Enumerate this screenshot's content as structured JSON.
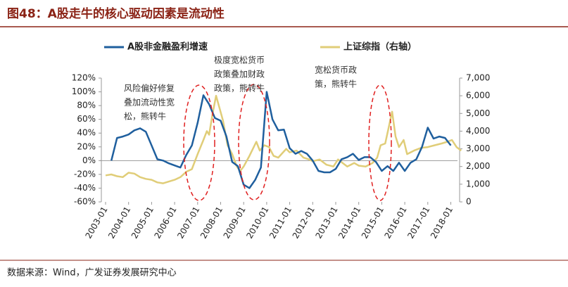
{
  "chart_data": {
    "type": "line",
    "title": "图48：A股走牛的核心驱动因素是流动性",
    "source": "数据来源：Wind，广发证券发展研究中心",
    "annotations": [
      [
        "风险偏好修复",
        "叠加流动性宽",
        "松，熊转牛"
      ],
      [
        "极度宽松货币",
        "政策叠加财政",
        "政策，熊转牛"
      ],
      [
        "宽松货币政",
        "策，熊转牛"
      ]
    ],
    "xlim": [
      2003,
      2018.5
    ],
    "xticks": [
      {
        "value": 2003,
        "label": "2003-01"
      },
      {
        "value": 2004,
        "label": "2004-01"
      },
      {
        "value": 2005,
        "label": "2005-01"
      },
      {
        "value": 2006,
        "label": "2006-01"
      },
      {
        "value": 2007,
        "label": "2007-01"
      },
      {
        "value": 2008,
        "label": "2008-01"
      },
      {
        "value": 2009,
        "label": "2009-01"
      },
      {
        "value": 2010,
        "label": "2010-01"
      },
      {
        "value": 2011,
        "label": "2011-01"
      },
      {
        "value": 2012,
        "label": "2012-01"
      },
      {
        "value": 2013,
        "label": "2013-01"
      },
      {
        "value": 2014,
        "label": "2014-01"
      },
      {
        "value": 2015,
        "label": "2015-01"
      },
      {
        "value": 2016,
        "label": "2016-01"
      },
      {
        "value": 2017,
        "label": "2017-01"
      },
      {
        "value": 2018,
        "label": "2018-01"
      }
    ],
    "ylim": [
      -60,
      120
    ],
    "yticks": [
      {
        "value": -60,
        "label": "-60%"
      },
      {
        "value": -40,
        "label": "-40%"
      },
      {
        "value": -20,
        "label": "-20%"
      },
      {
        "value": 0,
        "label": "0%"
      },
      {
        "value": 20,
        "label": "20%"
      },
      {
        "value": 40,
        "label": "40%"
      },
      {
        "value": 60,
        "label": "60%"
      },
      {
        "value": 80,
        "label": "80%"
      },
      {
        "value": 100,
        "label": "100%"
      },
      {
        "value": 120,
        "label": "120%"
      }
    ],
    "y2lim": [
      0,
      7000
    ],
    "y2ticks": [
      0,
      {
        "value": 1000,
        "label": "1,000"
      },
      {
        "value": 2000,
        "label": "2,000"
      },
      {
        "value": 3000,
        "label": "3,000"
      },
      {
        "value": 4000,
        "label": "4,000"
      },
      {
        "value": 5000,
        "label": "5,000"
      },
      {
        "value": 6000,
        "label": "6,000"
      },
      {
        "value": 7000,
        "label": "7,000"
      }
    ],
    "series": [
      {
        "name": "A股非金融盈利增速",
        "color": "#1f5f9e",
        "x": [
          2003.25,
          2003.5,
          2003.75,
          2004.0,
          2004.25,
          2004.5,
          2004.75,
          2005.0,
          2005.25,
          2005.5,
          2005.75,
          2006.0,
          2006.25,
          2006.5,
          2006.75,
          2007.0,
          2007.25,
          2007.5,
          2007.75,
          2008.0,
          2008.25,
          2008.5,
          2008.75,
          2009.0,
          2009.25,
          2009.5,
          2009.75,
          2010.0,
          2010.25,
          2010.5,
          2010.75,
          2011.0,
          2011.25,
          2011.5,
          2011.75,
          2012.0,
          2012.25,
          2012.5,
          2012.75,
          2013.0,
          2013.25,
          2013.5,
          2013.75,
          2014.0,
          2014.25,
          2014.5,
          2014.75,
          2015.0,
          2015.25,
          2015.5,
          2015.75,
          2016.0,
          2016.25,
          2016.5,
          2016.75,
          2017.0,
          2017.25,
          2017.5,
          2017.75,
          2018.0
        ],
        "values": [
          0,
          33,
          35,
          38,
          44,
          47,
          42,
          22,
          2,
          0,
          -4,
          -7,
          -10,
          8,
          22,
          55,
          95,
          82,
          62,
          58,
          35,
          -2,
          -8,
          -35,
          -40,
          -28,
          -10,
          100,
          60,
          44,
          45,
          18,
          10,
          14,
          10,
          0,
          -15,
          -17,
          -17,
          -12,
          2,
          5,
          10,
          1,
          5,
          5,
          -2,
          -15,
          -8,
          -15,
          -3,
          -15,
          -3,
          2,
          20,
          48,
          32,
          35,
          33,
          22
        ]
      },
      {
        "name": "上证综指（右轴）",
        "color": "#e0cd78",
        "axis": "y2",
        "x": [
          2003.0,
          2003.25,
          2003.5,
          2003.75,
          2004.0,
          2004.25,
          2004.5,
          2004.75,
          2005.0,
          2005.25,
          2005.5,
          2005.75,
          2006.0,
          2006.25,
          2006.5,
          2006.75,
          2007.0,
          2007.25,
          2007.4,
          2007.5,
          2007.65,
          2007.8,
          2007.95,
          2008.1,
          2008.3,
          2008.5,
          2008.7,
          2008.85,
          2009.0,
          2009.25,
          2009.55,
          2009.7,
          2009.9,
          2010.1,
          2010.3,
          2010.5,
          2010.85,
          2011.0,
          2011.3,
          2011.6,
          2011.85,
          2012.0,
          2012.3,
          2012.6,
          2012.9,
          2013.1,
          2013.5,
          2013.8,
          2014.0,
          2014.3,
          2014.6,
          2014.8,
          2014.95,
          2015.15,
          2015.3,
          2015.45,
          2015.6,
          2015.75,
          2015.95,
          2016.1,
          2016.4,
          2016.7,
          2017.0,
          2017.3,
          2017.6,
          2017.85,
          2018.05,
          2018.25,
          2018.45
        ],
        "values": [
          1500,
          1550,
          1450,
          1400,
          1650,
          1600,
          1400,
          1300,
          1250,
          1100,
          1050,
          1150,
          1250,
          1400,
          1700,
          1850,
          2700,
          3500,
          4000,
          3800,
          5000,
          6000,
          5300,
          4600,
          3200,
          2700,
          2000,
          1750,
          2000,
          2600,
          3400,
          2900,
          3200,
          3100,
          2600,
          2500,
          3000,
          2800,
          2900,
          2500,
          2400,
          2300,
          2400,
          2100,
          2000,
          2400,
          2000,
          2200,
          2050,
          2000,
          2200,
          2500,
          3200,
          3300,
          4200,
          5100,
          3700,
          3100,
          3500,
          2700,
          2900,
          3050,
          3100,
          3200,
          3300,
          3400,
          3500,
          3100,
          2900
        ]
      }
    ],
    "legend": "top"
  }
}
